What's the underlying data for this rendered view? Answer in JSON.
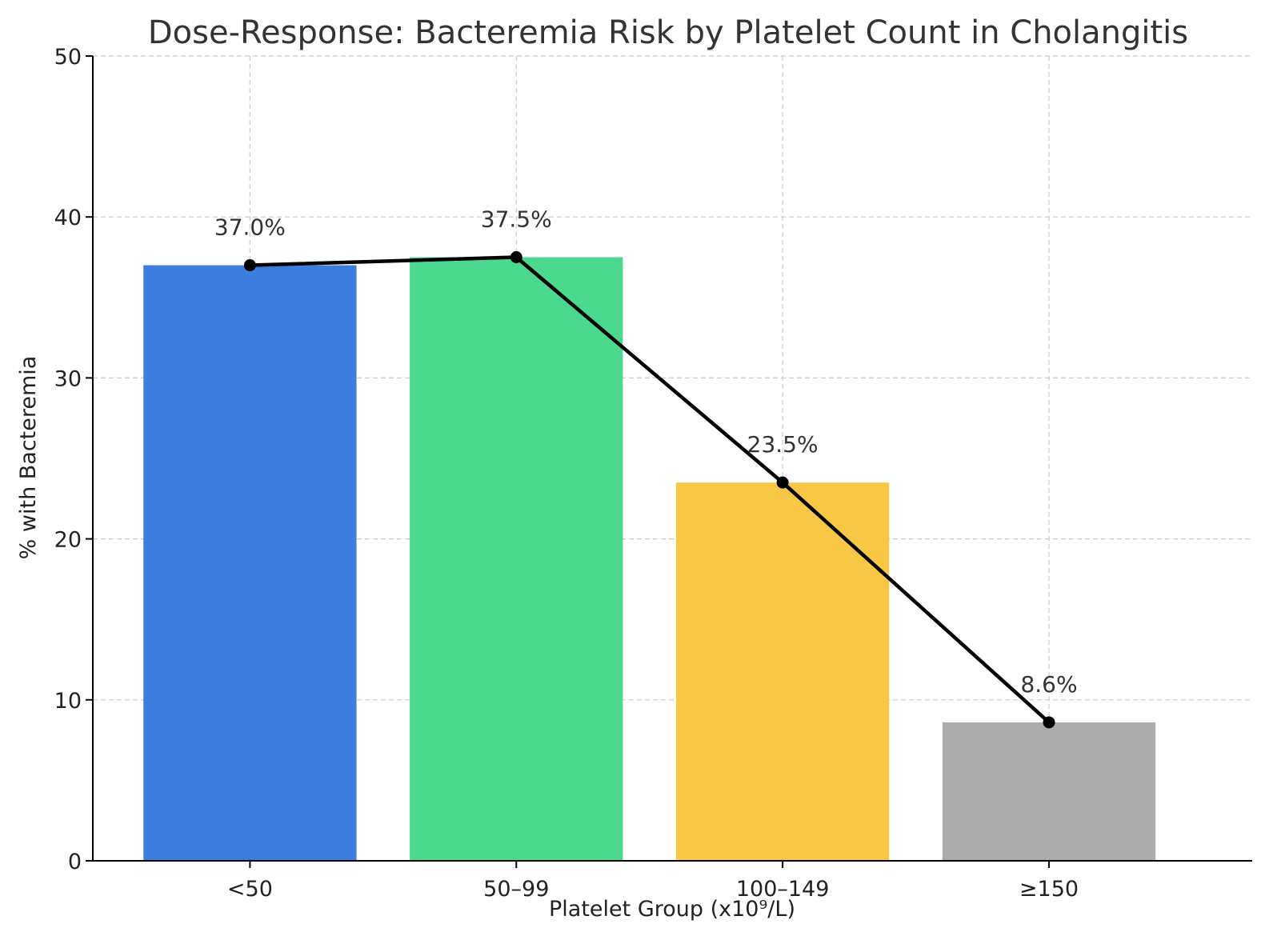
{
  "chart_data": {
    "type": "bar",
    "title": "Dose-Response: Bacteremia Risk by Platelet Count in Cholangitis",
    "xlabel": "Platelet Group (x10⁹/L)",
    "ylabel": "% with Bacteremia",
    "categories": [
      "<50",
      "50–99",
      "100–149",
      "≥150"
    ],
    "values": [
      37.0,
      37.5,
      23.5,
      8.6
    ],
    "data_labels": [
      "37.0%",
      "37.5%",
      "23.5%",
      "8.6%"
    ],
    "bar_colors": [
      "#3c7ddd",
      "#4bd98f",
      "#f8c746",
      "#acacac"
    ],
    "line_color": "#000000",
    "overlay": "line with markers connecting bar values",
    "ylim": [
      0,
      50
    ],
    "yticks": [
      0,
      10,
      20,
      30,
      40,
      50
    ],
    "grid": true
  }
}
